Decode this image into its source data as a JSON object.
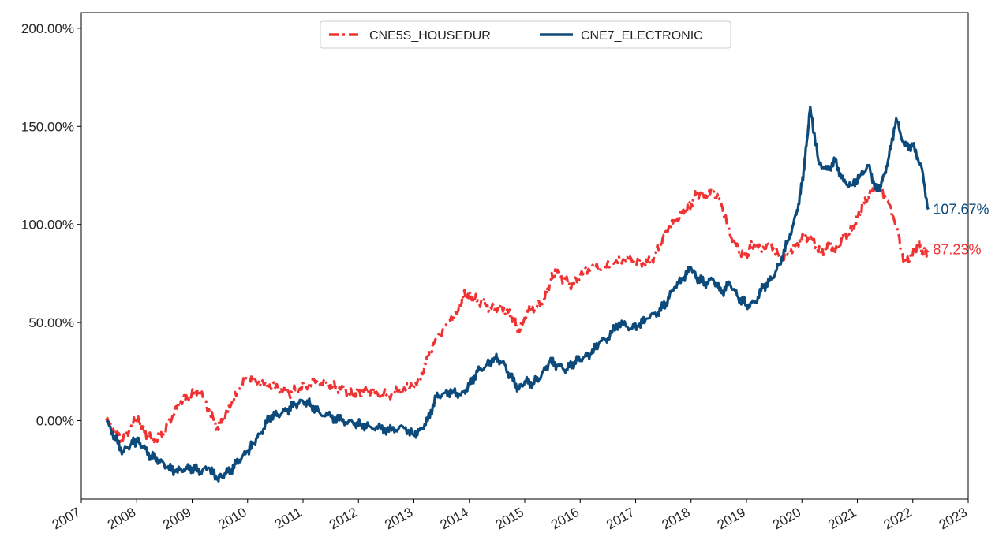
{
  "chart_data": {
    "type": "line",
    "title": "",
    "xlabel": "",
    "ylabel": "",
    "x_tick_labels": [
      "2007",
      "2008",
      "2009",
      "2010",
      "2011",
      "2012",
      "2013",
      "2014",
      "2015",
      "2016",
      "2017",
      "2018",
      "2019",
      "2020",
      "2021",
      "2022",
      "2023"
    ],
    "y_tick_labels": [
      "0.00%",
      "50.00%",
      "100.00%",
      "150.00%",
      "200.00%"
    ],
    "y_ticks": [
      0,
      50,
      100,
      150,
      200
    ],
    "xlim": [
      2007.0,
      2023.0
    ],
    "ylim": [
      -40,
      208
    ],
    "grid": false,
    "legend_position": "top-center",
    "series": [
      {
        "name": "CNE5S_HOUSEDUR",
        "color": "#f03232",
        "style": "dashdot",
        "end_label": "87.23%",
        "x": [
          2007.45,
          2007.62,
          2007.75,
          2007.9,
          2008.0,
          2008.1,
          2008.2,
          2008.35,
          2008.5,
          2008.65,
          2008.8,
          2008.95,
          2009.1,
          2009.3,
          2009.45,
          2009.55,
          2009.7,
          2009.85,
          2010.0,
          2010.15,
          2010.35,
          2010.55,
          2010.75,
          2010.9,
          2011.05,
          2011.25,
          2011.45,
          2011.6,
          2011.75,
          2011.9,
          2012.0,
          2012.15,
          2012.3,
          2012.5,
          2012.7,
          2012.9,
          2013.1,
          2013.25,
          2013.4,
          2013.6,
          2013.8,
          2013.9,
          2014.0,
          2014.1,
          2014.25,
          2014.4,
          2014.55,
          2014.7,
          2014.8,
          2014.9,
          2015.05,
          2015.2,
          2015.35,
          2015.45,
          2015.55,
          2015.7,
          2015.85,
          2016.0,
          2016.2,
          2016.4,
          2016.6,
          2016.8,
          2017.0,
          2017.15,
          2017.3,
          2017.45,
          2017.6,
          2017.75,
          2017.9,
          2018.0,
          2018.1,
          2018.25,
          2018.4,
          2018.55,
          2018.7,
          2018.85,
          2019.0,
          2019.1,
          2019.25,
          2019.45,
          2019.6,
          2019.75,
          2019.9,
          2020.05,
          2020.2,
          2020.35,
          2020.5,
          2020.6,
          2020.75,
          2020.9,
          2021.0,
          2021.1,
          2021.25,
          2021.4,
          2021.55,
          2021.7,
          2021.85,
          2022.0,
          2022.1,
          2022.2,
          2022.28
        ],
        "y": [
          0,
          -6,
          -10,
          -3,
          2,
          -4,
          -8,
          -10,
          -6,
          3,
          10,
          12,
          16,
          6,
          -4,
          0,
          8,
          16,
          22,
          20,
          18,
          17,
          14,
          16,
          18,
          20,
          19,
          17,
          16,
          13,
          14,
          15,
          14,
          13,
          15,
          17,
          20,
          33,
          42,
          50,
          56,
          65,
          63,
          62,
          60,
          57,
          58,
          55,
          52,
          45,
          56,
          58,
          62,
          70,
          77,
          72,
          69,
          74,
          78,
          77,
          80,
          82,
          81,
          80,
          82,
          90,
          99,
          103,
          107,
          110,
          116,
          114,
          117,
          110,
          95,
          87,
          84,
          90,
          88,
          90,
          83,
          85,
          90,
          94,
          92,
          85,
          90,
          86,
          94,
          97,
          103,
          110,
          117,
          120,
          112,
          100,
          80,
          85,
          90,
          85,
          87.23
        ]
      },
      {
        "name": "CNE7_ELECTRONIC",
        "color": "#0b4a7a",
        "style": "solid",
        "end_label": "107.67%",
        "x": [
          2007.45,
          2007.6,
          2007.75,
          2007.9,
          2008.0,
          2008.1,
          2008.25,
          2008.4,
          2008.55,
          2008.7,
          2008.85,
          2009.0,
          2009.15,
          2009.3,
          2009.45,
          2009.55,
          2009.7,
          2009.85,
          2010.0,
          2010.1,
          2010.25,
          2010.4,
          2010.55,
          2010.7,
          2010.85,
          2011.0,
          2011.15,
          2011.3,
          2011.5,
          2011.7,
          2011.9,
          2012.05,
          2012.2,
          2012.4,
          2012.6,
          2012.8,
          2013.0,
          2013.1,
          2013.25,
          2013.4,
          2013.55,
          2013.7,
          2013.85,
          2014.0,
          2014.15,
          2014.3,
          2014.45,
          2014.6,
          2014.75,
          2014.9,
          2015.0,
          2015.15,
          2015.3,
          2015.45,
          2015.6,
          2015.75,
          2015.9,
          2016.05,
          2016.2,
          2016.35,
          2016.5,
          2016.7,
          2016.9,
          2017.05,
          2017.2,
          2017.4,
          2017.55,
          2017.7,
          2017.85,
          2018.0,
          2018.1,
          2018.25,
          2018.4,
          2018.55,
          2018.7,
          2018.85,
          2019.0,
          2019.15,
          2019.3,
          2019.45,
          2019.6,
          2019.75,
          2019.9,
          2020.0,
          2020.08,
          2020.15,
          2020.3,
          2020.45,
          2020.6,
          2020.75,
          2020.9,
          2021.05,
          2021.2,
          2021.35,
          2021.45,
          2021.55,
          2021.7,
          2021.85,
          2022.0,
          2022.15,
          2022.28
        ],
        "y": [
          0,
          -8,
          -16,
          -12,
          -10,
          -13,
          -18,
          -20,
          -24,
          -26,
          -25,
          -24,
          -26,
          -24,
          -30,
          -28,
          -25,
          -20,
          -16,
          -12,
          -6,
          2,
          3,
          5,
          8,
          10,
          8,
          4,
          2,
          0,
          -1,
          -2,
          -3,
          -4,
          -5,
          -3,
          -7,
          -5,
          0,
          12,
          14,
          15,
          13,
          18,
          25,
          28,
          32,
          30,
          22,
          16,
          20,
          19,
          23,
          30,
          28,
          26,
          30,
          32,
          34,
          40,
          42,
          50,
          47,
          48,
          52,
          55,
          60,
          68,
          72,
          78,
          73,
          70,
          72,
          65,
          70,
          63,
          59,
          60,
          68,
          72,
          80,
          92,
          105,
          120,
          140,
          160,
          132,
          128,
          132,
          122,
          120,
          125,
          130,
          117,
          122,
          132,
          154,
          140,
          140,
          130,
          107.67
        ]
      }
    ]
  }
}
